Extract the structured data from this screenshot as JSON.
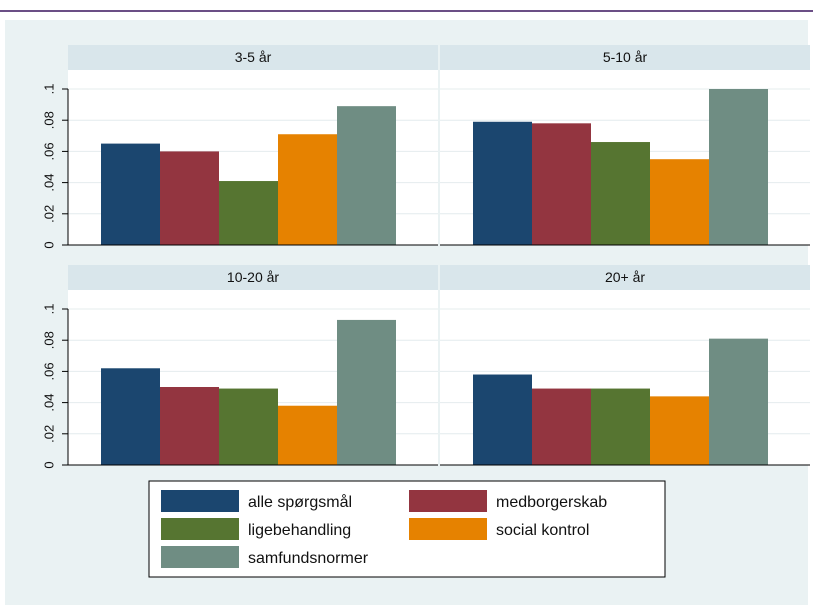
{
  "chart_data": {
    "type": "bar",
    "ylim": [
      0,
      0.1
    ],
    "ytick_labels": [
      "0",
      ".02",
      ".04",
      ".06",
      ".08",
      ".1"
    ],
    "ytick_values": [
      0,
      0.02,
      0.04,
      0.06,
      0.08,
      0.1
    ],
    "grid": true,
    "legend_position": "bottom",
    "series_names": [
      "alle spørgsmål",
      "medborgerskab",
      "ligebehandling",
      "social kontrol",
      "samfundsnormer"
    ],
    "colors": [
      "#1b466f",
      "#933540",
      "#567531",
      "#e68200",
      "#6f8d83"
    ],
    "panels": [
      {
        "title": "3-5 år",
        "values": [
          0.065,
          0.06,
          0.041,
          0.071,
          0.089
        ]
      },
      {
        "title": "5-10 år",
        "values": [
          0.079,
          0.078,
          0.066,
          0.055,
          0.1
        ]
      },
      {
        "title": "10-20 år",
        "values": [
          0.062,
          0.05,
          0.049,
          0.038,
          0.093
        ]
      },
      {
        "title": "20+ år",
        "values": [
          0.058,
          0.049,
          0.049,
          0.044,
          0.081
        ]
      }
    ]
  }
}
